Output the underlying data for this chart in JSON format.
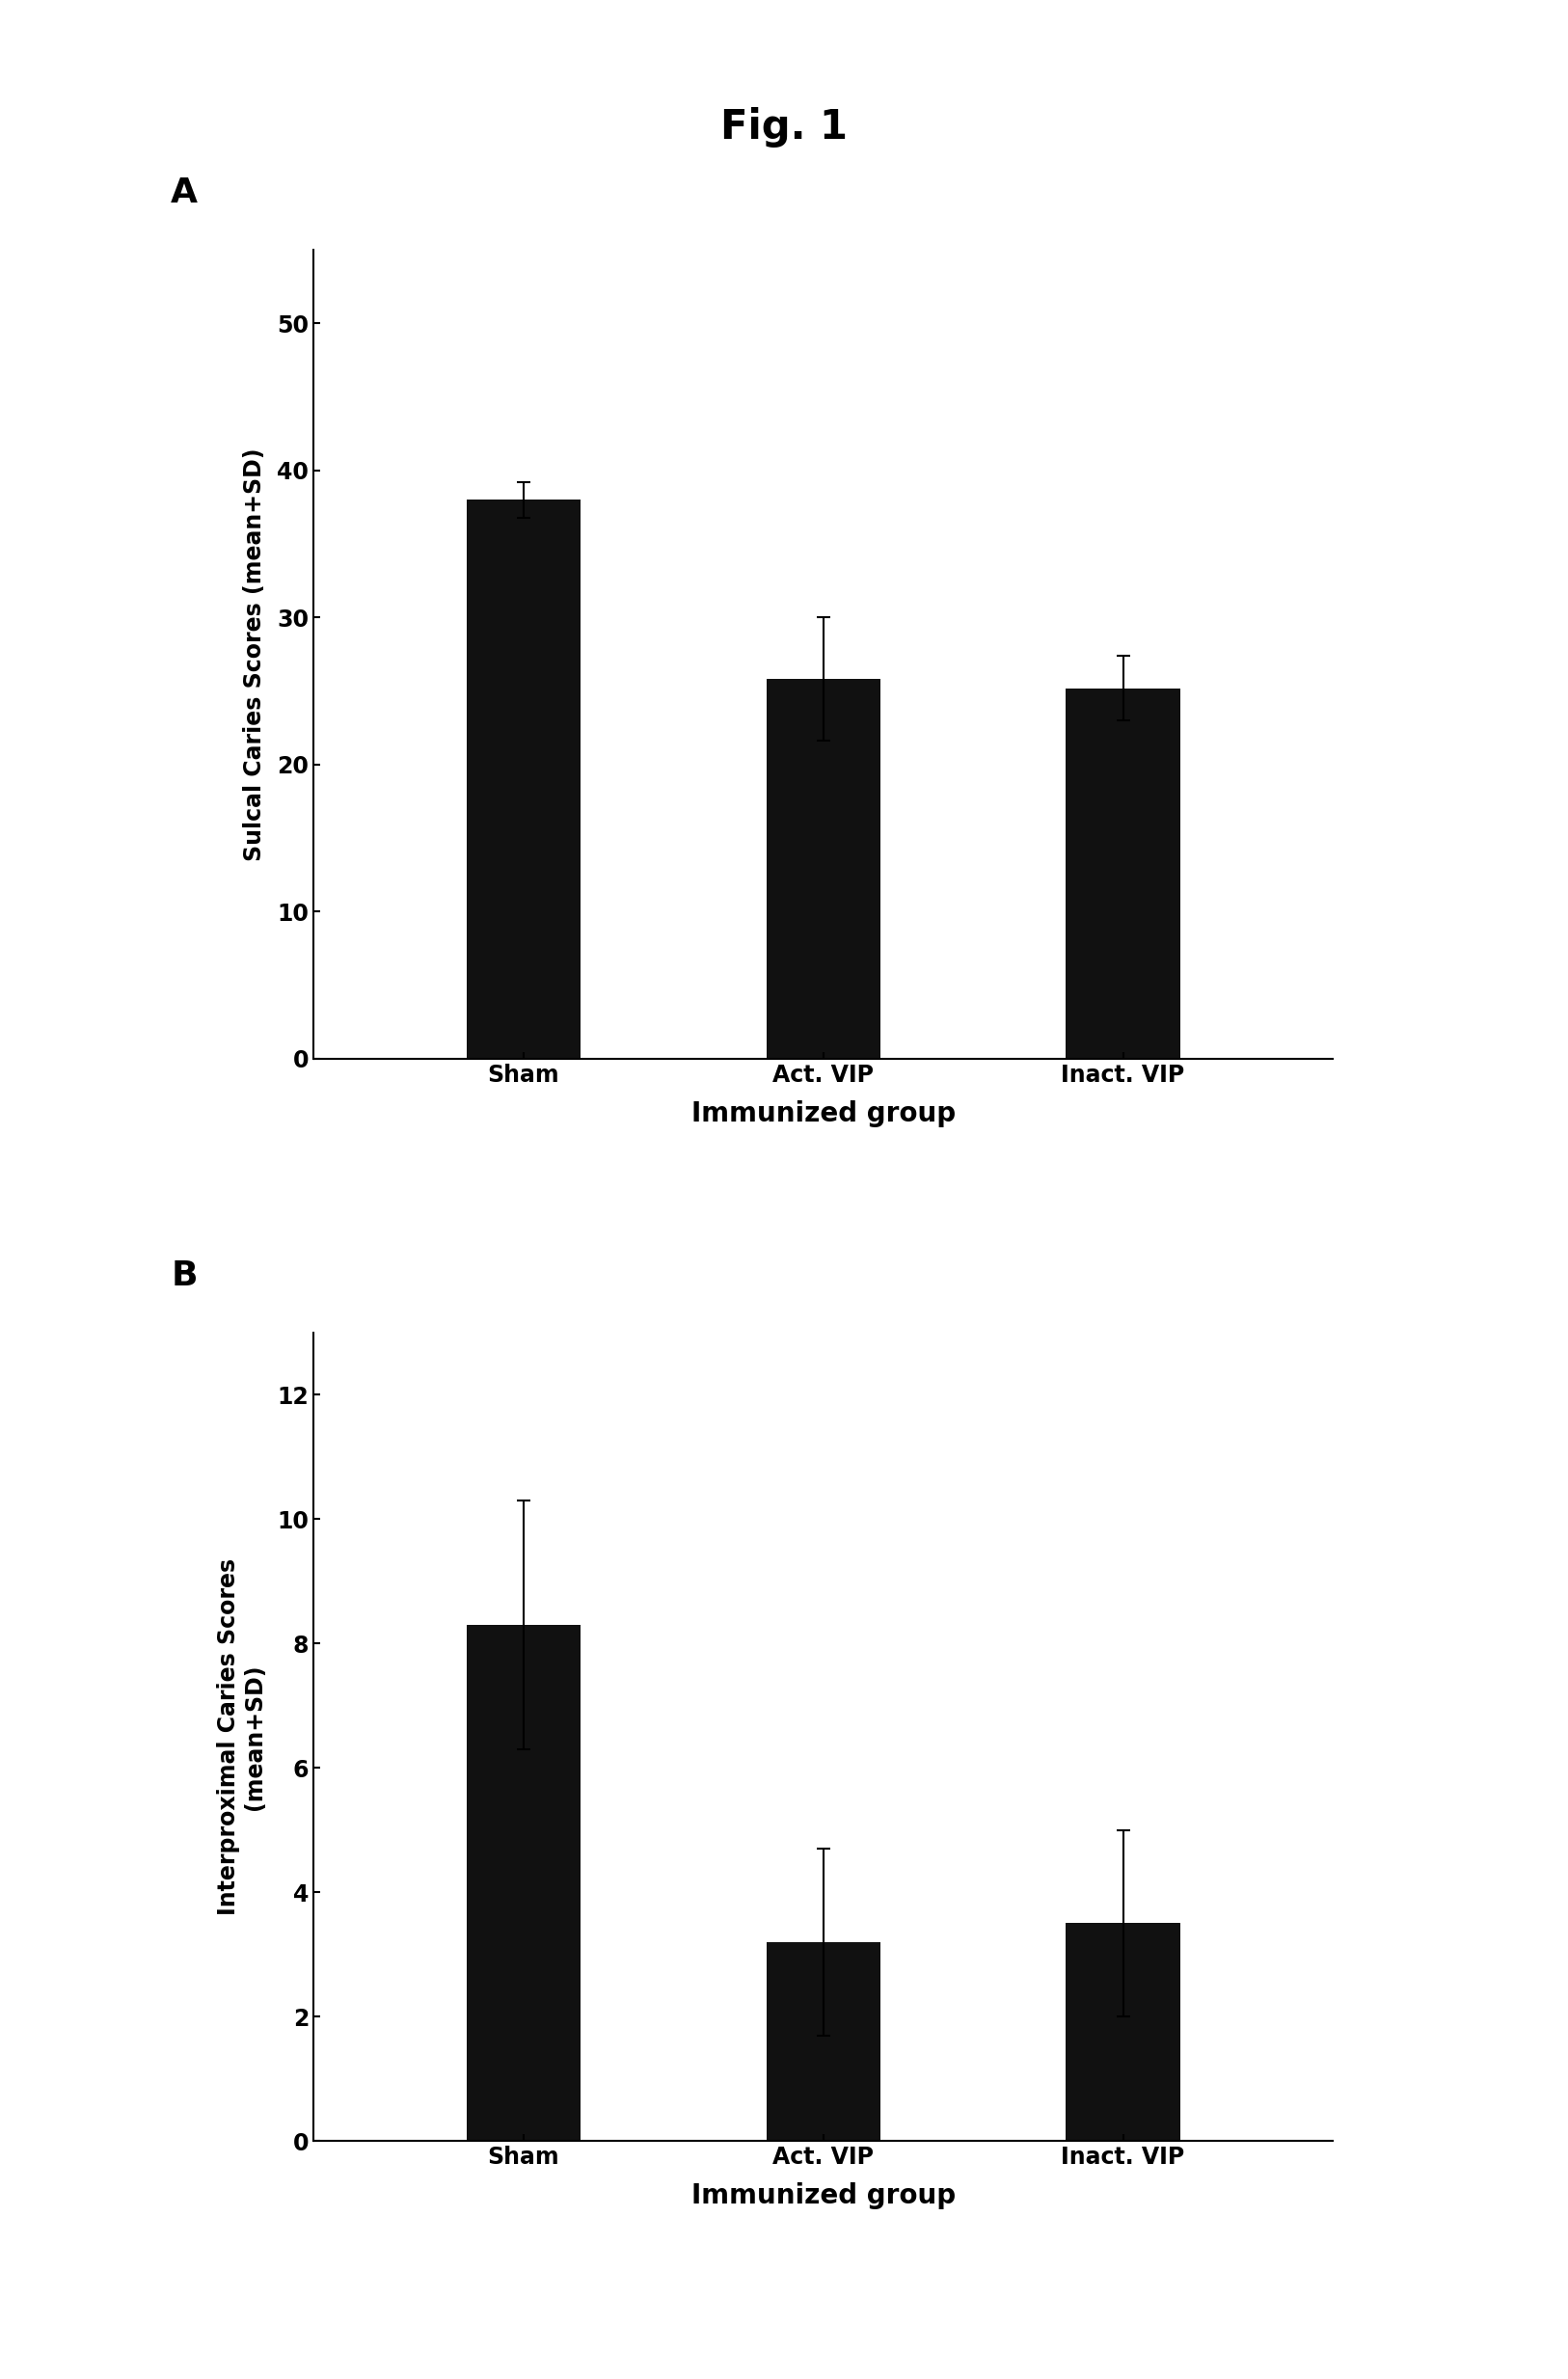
{
  "title": "Fig. 1",
  "title_fontsize": 30,
  "title_fontweight": "bold",
  "panel_A": {
    "label": "A",
    "categories": [
      "Sham",
      "Act. VIP",
      "Inact. VIP"
    ],
    "values": [
      38.0,
      25.8,
      25.2
    ],
    "errors": [
      1.2,
      4.2,
      2.2
    ],
    "bar_color": "#111111",
    "ylabel": "Sulcal Caries Scores (mean+SD)",
    "xlabel": "Immunized group",
    "ylim": [
      0,
      55
    ],
    "yticks": [
      0,
      10,
      20,
      30,
      40,
      50
    ]
  },
  "panel_B": {
    "label": "B",
    "categories": [
      "Sham",
      "Act. VIP",
      "Inact. VIP"
    ],
    "values": [
      8.3,
      3.2,
      3.5
    ],
    "errors": [
      2.0,
      1.5,
      1.5
    ],
    "bar_color": "#111111",
    "ylabel": "Interproximal Caries Scores\n(mean+SD)",
    "xlabel": "Immunized group",
    "ylim": [
      0,
      13
    ],
    "yticks": [
      0,
      2,
      4,
      6,
      8,
      10,
      12
    ]
  },
  "bar_width": 0.38,
  "bg_color": "#ffffff",
  "tick_fontsize": 17,
  "xlabel_fontsize": 20,
  "ylabel_fontsize": 17,
  "panel_label_fontsize": 26
}
